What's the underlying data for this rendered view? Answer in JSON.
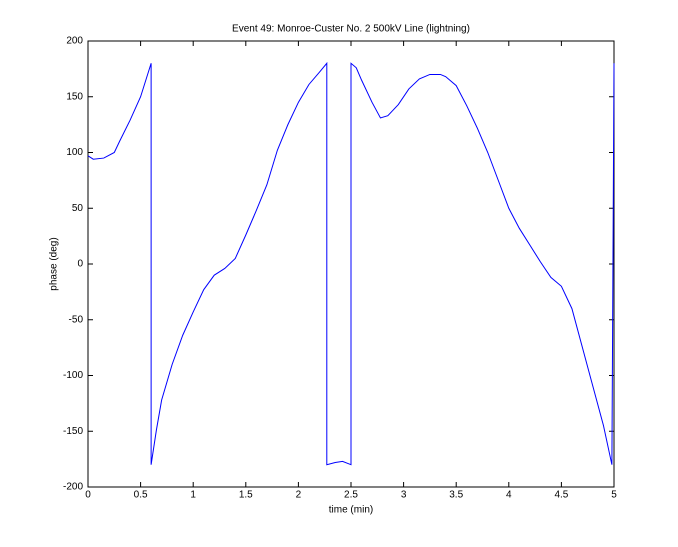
{
  "chart_data": {
    "type": "line",
    "title": "Event 49: Monroe-Custer No. 2 500kV Line (lightning)",
    "xlabel": "time (min)",
    "ylabel": "phase (deg)",
    "x": [
      0,
      0.05,
      0.15,
      0.25,
      0.3,
      0.4,
      0.5,
      0.58,
      0.6,
      0.6,
      0.65,
      0.7,
      0.8,
      0.9,
      1.0,
      1.1,
      1.2,
      1.3,
      1.4,
      1.5,
      1.6,
      1.7,
      1.8,
      1.9,
      2.0,
      2.1,
      2.2,
      2.27,
      2.27,
      2.35,
      2.42,
      2.5,
      2.5,
      2.55,
      2.6,
      2.7,
      2.78,
      2.85,
      2.95,
      3.05,
      3.15,
      3.25,
      3.35,
      3.4,
      3.5,
      3.6,
      3.7,
      3.8,
      3.9,
      4.0,
      4.1,
      4.2,
      4.3,
      4.4,
      4.5,
      4.6,
      4.7,
      4.8,
      4.9,
      4.98,
      5.0
    ],
    "series": [
      {
        "color": "#0000ff",
        "values": [
          97,
          94,
          95,
          100,
          110,
          129,
          150,
          174,
          180,
          -180,
          -149,
          -122,
          -90,
          -64,
          -43,
          -23,
          -10,
          -4,
          5,
          26,
          48,
          71,
          102,
          125,
          145,
          161,
          172,
          180,
          -180,
          -178,
          -177,
          -180,
          180,
          176,
          165,
          145,
          131,
          133,
          143,
          157,
          166,
          170,
          170,
          168,
          160,
          142,
          122,
          100,
          75,
          50,
          32,
          17,
          2,
          -12,
          -20,
          -40,
          -75,
          -110,
          -145,
          -180,
          180
        ]
      }
    ],
    "xlim": [
      0,
      5
    ],
    "xticks": [
      0,
      0.5,
      1,
      1.5,
      2,
      2.5,
      3,
      3.5,
      4,
      4.5,
      5
    ],
    "ylim": [
      -200,
      200
    ],
    "yticks": [
      -200,
      -150,
      -100,
      -50,
      0,
      50,
      100,
      150,
      200
    ],
    "grid": false
  }
}
